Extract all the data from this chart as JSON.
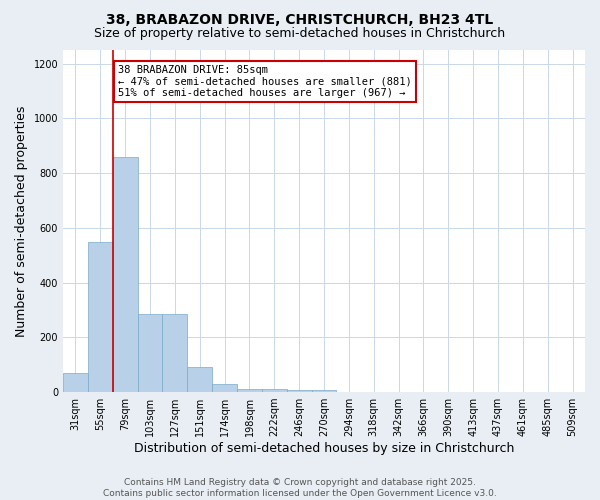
{
  "title_line1": "38, BRABAZON DRIVE, CHRISTCHURCH, BH23 4TL",
  "title_line2": "Size of property relative to semi-detached houses in Christchurch",
  "xlabel": "Distribution of semi-detached houses by size in Christchurch",
  "ylabel": "Number of semi-detached properties",
  "categories": [
    "31sqm",
    "55sqm",
    "79sqm",
    "103sqm",
    "127sqm",
    "151sqm",
    "174sqm",
    "198sqm",
    "222sqm",
    "246sqm",
    "270sqm",
    "294sqm",
    "318sqm",
    "342sqm",
    "366sqm",
    "390sqm",
    "413sqm",
    "437sqm",
    "461sqm",
    "485sqm",
    "509sqm"
  ],
  "values": [
    70,
    550,
    860,
    285,
    285,
    90,
    30,
    12,
    12,
    8,
    8,
    0,
    0,
    0,
    0,
    0,
    0,
    0,
    0,
    0,
    0
  ],
  "bar_color": "#b8d0e8",
  "bar_edge_color": "#7aaac8",
  "vline_x_index": 2,
  "annotation_title": "38 BRABAZON DRIVE: 85sqm",
  "annotation_line2": "← 47% of semi-detached houses are smaller (881)",
  "annotation_line3": "51% of semi-detached houses are larger (967) →",
  "annotation_box_color": "#ffffff",
  "annotation_box_edge": "#cc0000",
  "vline_color": "#cc0000",
  "ylim": [
    0,
    1250
  ],
  "yticks": [
    0,
    200,
    400,
    600,
    800,
    1000,
    1200
  ],
  "footer_line1": "Contains HM Land Registry data © Crown copyright and database right 2025.",
  "footer_line2": "Contains public sector information licensed under the Open Government Licence v3.0.",
  "background_color": "#e8eef4",
  "plot_background": "#ffffff",
  "grid_color": "#c8d8e8",
  "title_fontsize": 10,
  "subtitle_fontsize": 9,
  "axis_label_fontsize": 9,
  "tick_fontsize": 7,
  "annotation_fontsize": 7.5,
  "footer_fontsize": 6.5
}
